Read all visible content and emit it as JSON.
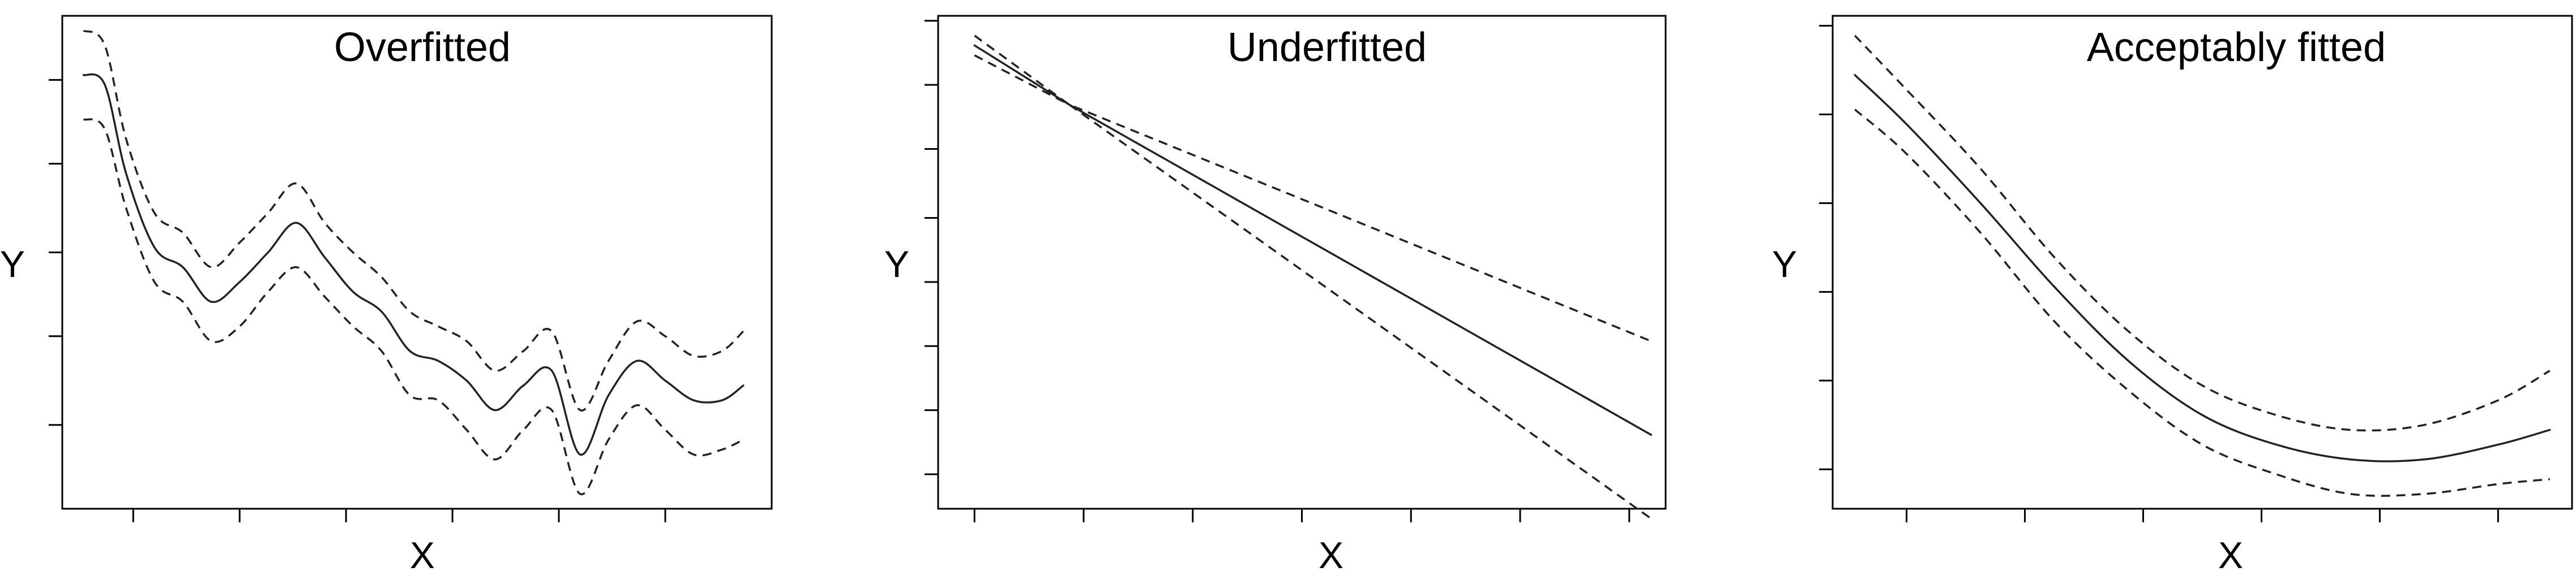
{
  "chart_data": [
    {
      "type": "line",
      "title": "Overfitted",
      "xlabel": "X",
      "ylabel": "Y",
      "xlim": [
        0,
        10
      ],
      "ylim": [
        0,
        10
      ],
      "grid": false,
      "x_ticks": [
        1,
        2.5,
        4,
        5.5,
        7,
        8.5
      ],
      "y_ticks": [
        1.7,
        3.5,
        5.2,
        7.0,
        8.7
      ],
      "x": [
        0.3,
        0.6,
        0.9,
        1.3,
        1.7,
        2.1,
        2.5,
        2.9,
        3.3,
        3.7,
        4.1,
        4.5,
        4.9,
        5.3,
        5.7,
        6.1,
        6.5,
        6.9,
        7.3,
        7.7,
        8.1,
        8.5,
        8.9,
        9.3,
        9.6
      ],
      "series": [
        {
          "role": "fit",
          "style": "solid",
          "values": [
            8.8,
            8.6,
            6.8,
            5.3,
            4.9,
            4.2,
            4.6,
            5.2,
            5.8,
            5.1,
            4.4,
            4.0,
            3.2,
            3.0,
            2.6,
            2.0,
            2.5,
            2.8,
            1.1,
            2.3,
            3.0,
            2.6,
            2.2,
            2.2,
            2.5
          ]
        },
        {
          "role": "upper",
          "style": "dashed",
          "values": [
            9.7,
            9.4,
            7.5,
            6.0,
            5.6,
            4.9,
            5.4,
            6.0,
            6.6,
            5.8,
            5.2,
            4.7,
            4.0,
            3.7,
            3.4,
            2.8,
            3.2,
            3.6,
            2.0,
            3.0,
            3.8,
            3.5,
            3.1,
            3.2,
            3.6
          ]
        },
        {
          "role": "lower",
          "style": "dashed",
          "values": [
            7.9,
            7.7,
            6.1,
            4.6,
            4.2,
            3.4,
            3.7,
            4.4,
            4.9,
            4.3,
            3.7,
            3.2,
            2.3,
            2.2,
            1.6,
            1.0,
            1.6,
            2.0,
            0.3,
            1.4,
            2.1,
            1.6,
            1.1,
            1.2,
            1.4
          ]
        }
      ]
    },
    {
      "type": "line",
      "title": "Underfitted",
      "xlabel": "X",
      "ylabel": "Y",
      "xlim": [
        0,
        10
      ],
      "ylim": [
        0,
        10
      ],
      "grid": false,
      "x_ticks": [
        0.5,
        2.0,
        3.5,
        5.0,
        6.5,
        8.0,
        9.5
      ],
      "y_ticks": [
        0.7,
        2.0,
        3.3,
        4.6,
        5.9,
        7.3,
        8.6,
        9.9
      ],
      "x": [
        0.5,
        1.8,
        9.8
      ],
      "series": [
        {
          "role": "fit",
          "style": "solid",
          "values": [
            9.4,
            8.2,
            1.5
          ]
        },
        {
          "role": "upper",
          "style": "dashed",
          "values": [
            9.6,
            8.2,
            3.4
          ]
        },
        {
          "role": "lower",
          "style": "dashed",
          "values": [
            9.2,
            8.2,
            -0.2
          ]
        }
      ]
    },
    {
      "type": "line",
      "title": "Acceptably fitted",
      "xlabel": "X",
      "ylabel": "Y",
      "xlim": [
        0,
        10
      ],
      "ylim": [
        0,
        10
      ],
      "grid": false,
      "x_ticks": [
        1.0,
        2.6,
        4.2,
        5.8,
        7.4,
        9.0
      ],
      "y_ticks": [
        0.8,
        2.6,
        4.4,
        6.2,
        8.0,
        9.8
      ],
      "x": [
        0.3,
        1.0,
        2.0,
        3.0,
        4.0,
        5.0,
        6.0,
        7.0,
        8.0,
        9.0,
        9.7
      ],
      "series": [
        {
          "role": "fit",
          "style": "solid",
          "values": [
            8.8,
            7.8,
            6.2,
            4.5,
            3.0,
            1.9,
            1.3,
            1.0,
            1.0,
            1.3,
            1.6
          ]
        },
        {
          "role": "upper",
          "style": "dashed",
          "values": [
            9.6,
            8.5,
            6.9,
            5.1,
            3.6,
            2.5,
            1.9,
            1.6,
            1.7,
            2.2,
            2.8
          ]
        },
        {
          "role": "lower",
          "style": "dashed",
          "values": [
            8.1,
            7.2,
            5.6,
            3.8,
            2.4,
            1.3,
            0.7,
            0.3,
            0.3,
            0.5,
            0.6
          ]
        }
      ]
    }
  ]
}
